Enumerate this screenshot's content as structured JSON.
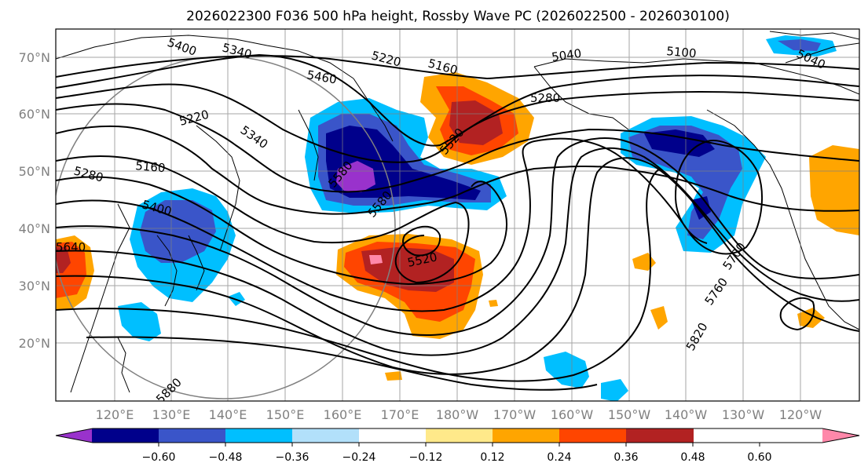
{
  "title": "2026022300 F036 500 hPa height, Rossby Wave PC (2026022500 - 2026030100)",
  "lat_labels": [
    "70°N",
    "60°N",
    "50°N",
    "40°N",
    "30°N",
    "20°N"
  ],
  "lon_labels": [
    "120°E",
    "130°E",
    "140°E",
    "150°E",
    "160°E",
    "170°E",
    "180°W",
    "170°W",
    "160°W",
    "150°W",
    "140°W",
    "130°W",
    "120°W"
  ],
  "contour_labels": [
    "5400",
    "5340",
    "5220",
    "5160",
    "5040",
    "5100",
    "5040",
    "5460",
    "5280",
    "5220",
    "5340",
    "5160",
    "5280",
    "5400",
    "5520",
    "5580",
    "5580",
    "5520",
    "5640",
    "5700",
    "5760",
    "5820",
    "5880"
  ],
  "colorbar": {
    "ticks": [
      "−0.60",
      "−0.48",
      "−0.36",
      "−0.24",
      "−0.12",
      "0.12",
      "0.24",
      "0.36",
      "0.48",
      "0.60"
    ],
    "colors": [
      "#9932CC",
      "#00008B",
      "#3A55C9",
      "#00BFFF",
      "#B2E0FA",
      "#FFFFFF",
      "#FFE98A",
      "#FFA500",
      "#FF4500",
      "#B22222",
      "#FF88AA"
    ]
  },
  "palette": {
    "neg_strong": "#9932CC",
    "neg_dark": "#00008B",
    "neg_mid": "#3A55C9",
    "neg_light": "#00BFFF",
    "neg_pale": "#B2E0FA",
    "pos_pale": "#FFE98A",
    "pos_light": "#FFA500",
    "pos_mid": "#FF4500",
    "pos_dark": "#B22222",
    "pos_strong": "#FF88AA",
    "grid": "#808080"
  }
}
